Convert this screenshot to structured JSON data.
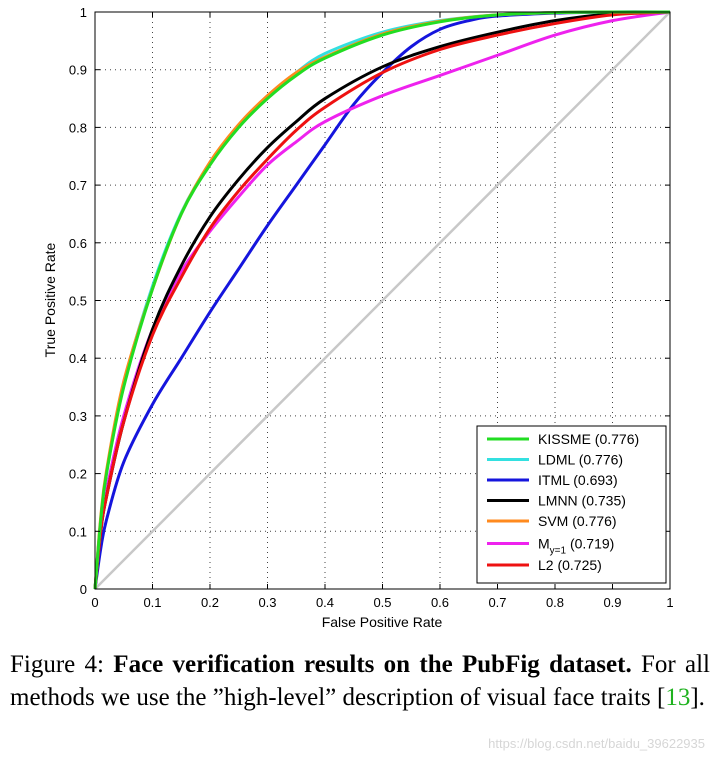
{
  "chart_data": {
    "type": "line",
    "title": "",
    "xlabel": "False Positive Rate",
    "ylabel": "True Positive Rate",
    "xlim": [
      0,
      1
    ],
    "ylim": [
      0,
      1
    ],
    "x_ticks": [
      "0",
      "0.1",
      "0.2",
      "0.3",
      "0.4",
      "0.5",
      "0.6",
      "0.7",
      "0.8",
      "0.9",
      "1"
    ],
    "y_ticks": [
      "0",
      "0.1",
      "0.2",
      "0.3",
      "0.4",
      "0.5",
      "0.6",
      "0.7",
      "0.8",
      "0.9",
      "1"
    ],
    "grid": true,
    "legend_position": "bottom-right",
    "diagonal": {
      "x": [
        0,
        1
      ],
      "y": [
        0,
        1
      ],
      "color": "#c8c8c8"
    },
    "series": [
      {
        "name": "KISSME (0.776)",
        "color": "#22dd22",
        "x": [
          0,
          0.01,
          0.02,
          0.05,
          0.1,
          0.15,
          0.2,
          0.25,
          0.3,
          0.35,
          0.4,
          0.5,
          0.6,
          0.7,
          0.8,
          0.9,
          1
        ],
        "y": [
          0,
          0.12,
          0.2,
          0.35,
          0.52,
          0.65,
          0.735,
          0.8,
          0.85,
          0.89,
          0.92,
          0.96,
          0.983,
          0.995,
          0.999,
          1,
          1
        ]
      },
      {
        "name": "LDML (0.776)",
        "color": "#33e0e0",
        "x": [
          0,
          0.01,
          0.02,
          0.05,
          0.1,
          0.15,
          0.2,
          0.25,
          0.3,
          0.35,
          0.4,
          0.5,
          0.6,
          0.7,
          0.8,
          0.9,
          1
        ],
        "y": [
          0,
          0.12,
          0.2,
          0.355,
          0.525,
          0.652,
          0.738,
          0.802,
          0.854,
          0.895,
          0.928,
          0.965,
          0.985,
          0.995,
          0.999,
          1,
          1
        ]
      },
      {
        "name": "ITML (0.693)",
        "color": "#1515dd",
        "x": [
          0,
          0.01,
          0.02,
          0.05,
          0.1,
          0.15,
          0.2,
          0.25,
          0.3,
          0.35,
          0.4,
          0.45,
          0.5,
          0.55,
          0.6,
          0.65,
          0.7,
          0.8,
          0.9,
          1
        ],
        "y": [
          0,
          0.07,
          0.12,
          0.22,
          0.32,
          0.4,
          0.48,
          0.555,
          0.63,
          0.7,
          0.77,
          0.84,
          0.895,
          0.94,
          0.97,
          0.985,
          0.993,
          0.998,
          1,
          1
        ]
      },
      {
        "name": "LMNN (0.735)",
        "color": "#000000",
        "x": [
          0,
          0.01,
          0.02,
          0.05,
          0.1,
          0.15,
          0.2,
          0.25,
          0.3,
          0.35,
          0.4,
          0.5,
          0.6,
          0.7,
          0.8,
          0.9,
          1
        ],
        "y": [
          0,
          0.1,
          0.16,
          0.29,
          0.45,
          0.56,
          0.645,
          0.71,
          0.765,
          0.81,
          0.85,
          0.905,
          0.94,
          0.965,
          0.985,
          0.997,
          1
        ]
      },
      {
        "name": "SVM (0.776)",
        "color": "#ff8a1e",
        "x": [
          0,
          0.01,
          0.02,
          0.05,
          0.1,
          0.15,
          0.2,
          0.25,
          0.3,
          0.35,
          0.4,
          0.5,
          0.6,
          0.7,
          0.8,
          0.9,
          1
        ],
        "y": [
          0,
          0.125,
          0.205,
          0.36,
          0.52,
          0.65,
          0.74,
          0.805,
          0.855,
          0.895,
          0.922,
          0.962,
          0.984,
          0.995,
          0.999,
          1,
          1
        ]
      },
      {
        "name": "M_{y=1} (0.719)",
        "label_main": "M",
        "label_sub": "y=1",
        "label_rest": " (0.719)",
        "color": "#ee22ee",
        "x": [
          0,
          0.01,
          0.02,
          0.05,
          0.1,
          0.15,
          0.2,
          0.25,
          0.3,
          0.35,
          0.4,
          0.5,
          0.6,
          0.7,
          0.8,
          0.9,
          1
        ],
        "y": [
          0,
          0.1,
          0.17,
          0.3,
          0.45,
          0.55,
          0.62,
          0.68,
          0.735,
          0.775,
          0.81,
          0.855,
          0.89,
          0.925,
          0.96,
          0.985,
          1
        ]
      },
      {
        "name": "L2 (0.725)",
        "color": "#ee1111",
        "x": [
          0,
          0.01,
          0.02,
          0.05,
          0.1,
          0.15,
          0.2,
          0.25,
          0.3,
          0.35,
          0.4,
          0.5,
          0.6,
          0.7,
          0.8,
          0.9,
          1
        ],
        "y": [
          0,
          0.1,
          0.16,
          0.29,
          0.44,
          0.54,
          0.625,
          0.69,
          0.745,
          0.795,
          0.835,
          0.895,
          0.935,
          0.96,
          0.98,
          0.995,
          1
        ]
      }
    ]
  },
  "caption": {
    "prefix": "Figure 4: ",
    "bold": "Face verification results on the PubFig dataset",
    "bold_end": ".",
    "body": "For all methods we use the ”high-level” description of visual face traits [",
    "ref": "13",
    "suffix": "]."
  },
  "watermark": "https://blog.csdn.net/baidu_39622935"
}
